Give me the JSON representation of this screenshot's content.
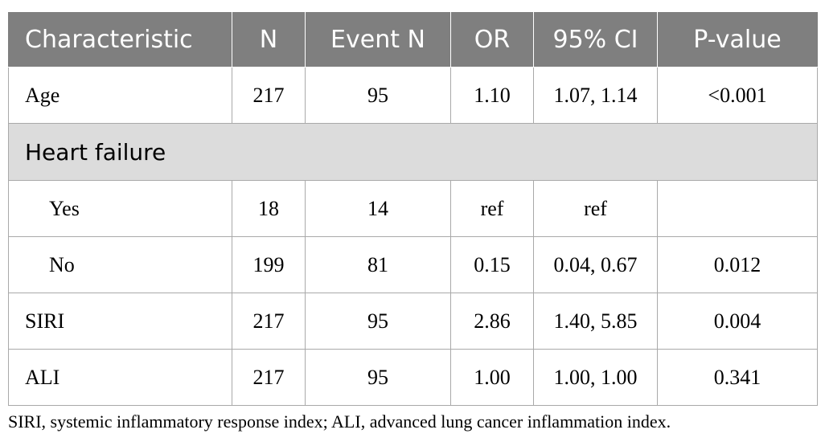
{
  "table": {
    "headers": [
      "Characteristic",
      "N",
      "Event N",
      "OR",
      "95% CI",
      "P-value"
    ],
    "rows": [
      {
        "label": "Age",
        "n": "217",
        "event_n": "95",
        "or": "1.10",
        "ci": "1.07, 1.14",
        "p": "<0.001"
      }
    ],
    "group": {
      "label": "Heart failure",
      "rows": [
        {
          "label": "Yes",
          "n": "18",
          "event_n": "14",
          "or": "ref",
          "ci": "ref",
          "p": ""
        },
        {
          "label": "No",
          "n": "199",
          "event_n": "81",
          "or": "0.15",
          "ci": "0.04, 0.67",
          "p": "0.012"
        }
      ]
    },
    "rows_after": [
      {
        "label": "SIRI",
        "n": "217",
        "event_n": "95",
        "or": "2.86",
        "ci": "1.40, 5.85",
        "p": "0.004"
      },
      {
        "label": "ALI",
        "n": "217",
        "event_n": "95",
        "or": "1.00",
        "ci": "1.00, 1.00",
        "p": "0.341"
      }
    ]
  },
  "footnote": "SIRI, systemic inflammatory response index; ALI, advanced lung cancer inflammation index.",
  "colors": {
    "header_bg": "#7f7f7f",
    "header_text": "#ffffff",
    "group_bg": "#dcdcdc",
    "border": "#a9a9a9"
  }
}
